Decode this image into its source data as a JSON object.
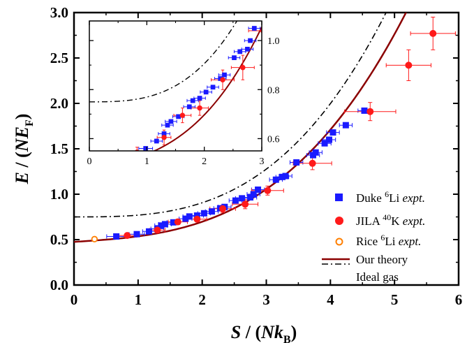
{
  "chart_data": {
    "type": "scatter",
    "title": "",
    "xlabel_parts": {
      "var": "S",
      "slash": " / (",
      "N": "N",
      "k": "k",
      "sub": "B",
      "close": ")"
    },
    "ylabel_parts": {
      "var": "E",
      "slash": " / (",
      "N": "NE",
      "sub": "F",
      "close": ")"
    },
    "xlim": [
      0,
      6
    ],
    "ylim": [
      0,
      3
    ],
    "x_ticks": [
      "0",
      "1",
      "2",
      "3",
      "4",
      "5",
      "6"
    ],
    "y_ticks": [
      "0.0",
      "0.5",
      "1.0",
      "1.5",
      "2.0",
      "2.5",
      "3.0"
    ],
    "series": [
      {
        "name_parts": {
          "pre": "Duke ",
          "sup": "6",
          "post": "Li ",
          "ital": "expt."
        },
        "marker": "square",
        "color": "#1a1aff",
        "points": [
          [
            0.66,
            0.535,
            0.15
          ],
          [
            0.98,
            0.56,
            0.12
          ],
          [
            1.17,
            0.59,
            0.1
          ],
          [
            1.3,
            0.62,
            0.1
          ],
          [
            1.36,
            0.655,
            0.1
          ],
          [
            1.42,
            0.67,
            0.1
          ],
          [
            1.55,
            0.69,
            0.1
          ],
          [
            1.74,
            0.73,
            0.1
          ],
          [
            1.8,
            0.755,
            0.1
          ],
          [
            1.92,
            0.765,
            0.1
          ],
          [
            2.03,
            0.79,
            0.1
          ],
          [
            2.15,
            0.81,
            0.1
          ],
          [
            2.28,
            0.845,
            0.1
          ],
          [
            2.35,
            0.86,
            0.1
          ],
          [
            2.52,
            0.93,
            0.1
          ],
          [
            2.62,
            0.955,
            0.1
          ],
          [
            2.75,
            0.965,
            0.1
          ],
          [
            2.8,
            1.0,
            0.1
          ],
          [
            2.87,
            1.05,
            0.1
          ],
          [
            3.15,
            1.16,
            0.1
          ],
          [
            3.25,
            1.19,
            0.1
          ],
          [
            3.3,
            1.2,
            0.1
          ],
          [
            3.47,
            1.35,
            0.1
          ],
          [
            3.73,
            1.43,
            0.1
          ],
          [
            3.77,
            1.46,
            0.1
          ],
          [
            3.91,
            1.56,
            0.1
          ],
          [
            3.98,
            1.6,
            0.1
          ],
          [
            4.04,
            1.68,
            0.1
          ],
          [
            4.24,
            1.76,
            0.1
          ],
          [
            4.53,
            1.92,
            0.1
          ]
        ]
      },
      {
        "name_parts": {
          "pre": "JILA ",
          "sup": "40",
          "post": "K ",
          "ital": "expt."
        },
        "marker": "circle",
        "color": "#ff1a1a",
        "points": [
          [
            0.83,
            0.545,
            0.15,
            0.02
          ],
          [
            1.3,
            0.605,
            0.12,
            0.03
          ],
          [
            1.62,
            0.695,
            0.15,
            0.03
          ],
          [
            1.92,
            0.725,
            0.15,
            0.03
          ],
          [
            2.32,
            0.84,
            0.2,
            0.04
          ],
          [
            2.67,
            0.89,
            0.2,
            0.05
          ],
          [
            3.02,
            1.04,
            0.25,
            0.05
          ],
          [
            3.72,
            1.34,
            0.3,
            0.07
          ],
          [
            4.62,
            1.91,
            0.4,
            0.1
          ],
          [
            5.22,
            2.42,
            0.35,
            0.17
          ],
          [
            5.6,
            2.77,
            0.35,
            0.18
          ]
        ]
      },
      {
        "name_parts": {
          "pre": "Rice ",
          "sup": "6",
          "post": "Li ",
          "ital": "expt."
        },
        "marker": "open-circle",
        "color": "#ff7f00",
        "points": [
          [
            0.32,
            0.505
          ]
        ]
      },
      {
        "name": "Our theory",
        "line": "solid",
        "color": "#8b0000",
        "curve": {
          "a": 0.475,
          "b": 0.045,
          "c": 0.0165
        }
      },
      {
        "name": "Ideal gas",
        "line": "dashdot",
        "color": "#000000",
        "curve": {
          "a": 0.75,
          "b": 0.0,
          "c": 0.0195
        }
      }
    ],
    "inset": {
      "xlim": [
        0,
        3
      ],
      "ylim": [
        0.55,
        1.08
      ],
      "x_ticks": [
        "0",
        "1",
        "2",
        "3"
      ],
      "y_ticks": [
        "0.6",
        "0.8",
        "1.0"
      ],
      "legend": false
    },
    "legend_placement": "bottom-right",
    "grid": false
  }
}
